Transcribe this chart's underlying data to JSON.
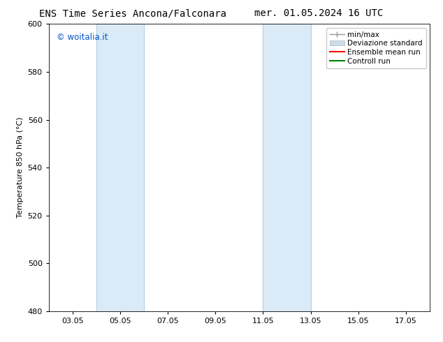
{
  "title_left": "ENS Time Series Ancona/Falconara",
  "title_right": "mer. 01.05.2024 16 UTC",
  "ylabel": "Temperature 850 hPa (°C)",
  "ylim": [
    480,
    600
  ],
  "yticks": [
    480,
    500,
    520,
    540,
    560,
    580,
    600
  ],
  "xtick_labels": [
    "03.05",
    "05.05",
    "07.05",
    "09.05",
    "11.05",
    "13.05",
    "15.05",
    "17.05"
  ],
  "xtick_positions": [
    1,
    3,
    5,
    7,
    9,
    11,
    13,
    15
  ],
  "xlim": [
    0,
    16
  ],
  "band1": [
    2.0,
    4.0
  ],
  "band2": [
    9.0,
    11.0
  ],
  "band_color": "#daeaf7",
  "legend_entries": [
    {
      "label": "min/max",
      "color": "#aaaaaa"
    },
    {
      "label": "Deviazione standard",
      "color": "#ccdde8"
    },
    {
      "label": "Ensemble mean run",
      "color": "#ff0000"
    },
    {
      "label": "Controll run",
      "color": "#008000"
    }
  ],
  "watermark_text": "© woitalia.it",
  "watermark_color": "#0055cc",
  "background_color": "#ffffff",
  "font_size": 8,
  "title_font_size": 10,
  "legend_font_size": 7.5
}
